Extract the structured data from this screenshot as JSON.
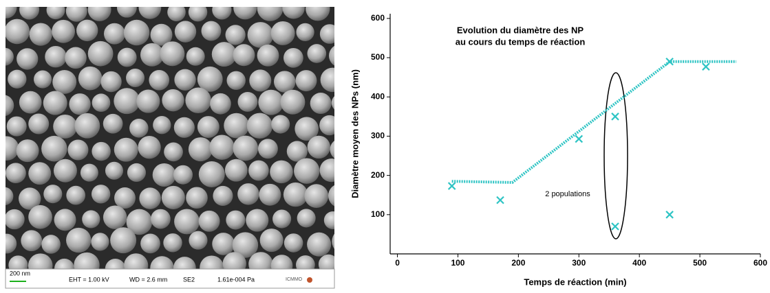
{
  "sem_image": {
    "scale_bar": "200 nm",
    "eht": "EHT = 1.00 kV",
    "wd": "WD = 2.6 mm",
    "detector": "SE2",
    "pressure": "1.61e-004 Pa",
    "logo": "ICMMO"
  },
  "chart_data": {
    "type": "scatter",
    "title": [
      "Evolution du diamètre des NP",
      "au cours du temps de réaction"
    ],
    "x_label": "Temps de réaction (min)",
    "y_label": "Diamètre moyen des NPs (nm)",
    "x": [
      90,
      170,
      300,
      360,
      360,
      450,
      450,
      510
    ],
    "values": [
      173,
      137,
      293,
      350,
      70,
      100,
      490,
      477
    ],
    "color": "#2ec4c4",
    "marker": "x",
    "trend": {
      "x": [
        90,
        190,
        450,
        560
      ],
      "values": [
        185,
        182,
        490,
        490
      ],
      "color": "#2ec4c4",
      "style": "dotted"
    },
    "annotation": "2 populations",
    "xlim": [
      -12,
      600
    ],
    "ylim": [
      0,
      612
    ],
    "xticks": [
      0,
      100,
      200,
      300,
      400,
      500,
      600
    ],
    "yticks": [
      100,
      200,
      300,
      400,
      500,
      600
    ],
    "grid": false
  }
}
